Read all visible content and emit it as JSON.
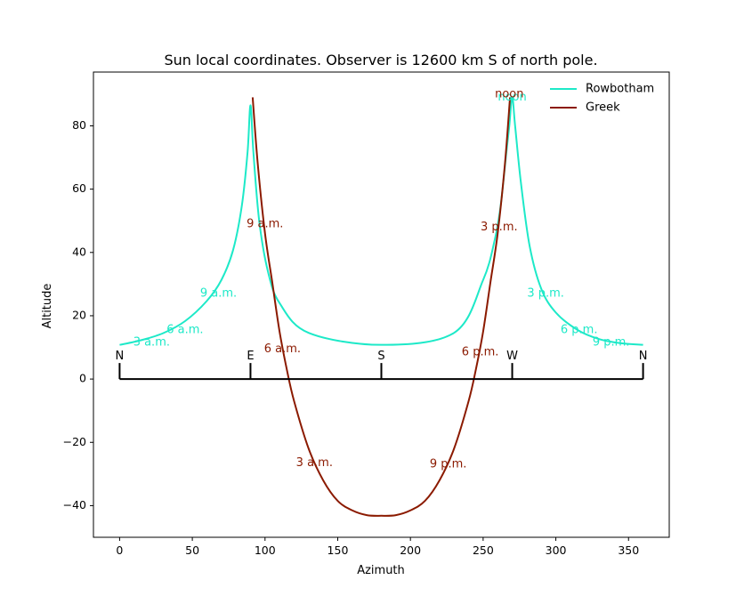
{
  "chart_data": {
    "type": "line",
    "title": "Sun local coordinates. Observer is 12600 km S of north pole.",
    "xlabel": "Azimuth",
    "ylabel": "Altitude",
    "xlim": [
      -18,
      378
    ],
    "ylim": [
      -50,
      97
    ],
    "xticks": [
      0,
      50,
      100,
      150,
      200,
      250,
      300,
      350
    ],
    "yticks": [
      -40,
      -20,
      0,
      20,
      40,
      60,
      80
    ],
    "legend_position": "top-right",
    "series": [
      {
        "name": "Rowbotham",
        "color": "#1de9c8",
        "x": [
          0,
          15,
          30,
          45,
          60,
          70,
          78,
          84,
          88,
          90,
          92,
          96,
          102,
          110,
          130,
          180,
          230,
          250,
          258,
          262,
          266,
          268,
          270,
          272,
          276,
          282,
          290,
          300,
          315,
          330,
          345,
          360
        ],
        "y": [
          10.8,
          12.3,
          14.5,
          18.3,
          24.7,
          31.3,
          40.7,
          54.6,
          71.7,
          86.5,
          71.7,
          50.0,
          34.0,
          24.0,
          14.6,
          10.8,
          14.6,
          31.3,
          44.0,
          54.6,
          71.7,
          80.0,
          89.0,
          80.0,
          62.0,
          42.0,
          28.5,
          21.0,
          15.5,
          12.6,
          11.3,
          10.8
        ],
        "visible_x_range": [
          0,
          360
        ],
        "labels": [
          {
            "text": "3 a.m.",
            "x": 22,
            "y": 11.5
          },
          {
            "text": "6 a.m.",
            "x": 45,
            "y": 15.5
          },
          {
            "text": "9 a.m.",
            "x": 68,
            "y": 27
          },
          {
            "text": "noon",
            "x": 270,
            "y": 89
          },
          {
            "text": "3 p.m.",
            "x": 293,
            "y": 27
          },
          {
            "text": "6 p.m.",
            "x": 316,
            "y": 15.5
          },
          {
            "text": "9 p.m.",
            "x": 338,
            "y": 11.5
          }
        ]
      },
      {
        "name": "Greek",
        "color": "#8b1a00",
        "x": [
          91.5,
          95,
          100,
          105,
          110,
          115,
          120,
          130,
          140,
          150,
          160,
          170,
          180,
          190,
          200,
          210,
          220,
          230,
          240,
          245,
          250,
          255,
          260,
          265,
          268.5
        ],
        "y": [
          89,
          68,
          46,
          30.5,
          15,
          3,
          -7,
          -22,
          -32,
          -38.5,
          -41.5,
          -43,
          -43.2,
          -43,
          -41.5,
          -38.5,
          -32,
          -22,
          -7,
          3,
          15,
          30.5,
          46,
          68,
          89
        ],
        "labels": [
          {
            "text": "9 a.m.",
            "x": 100,
            "y": 49
          },
          {
            "text": "6 a.m.",
            "x": 112,
            "y": 9.5
          },
          {
            "text": "3 a.m.",
            "x": 134,
            "y": -26.5
          },
          {
            "text": "noon",
            "x": 268,
            "y": 90
          },
          {
            "text": "3 p.m.",
            "x": 261,
            "y": 48
          },
          {
            "text": "6 p.m.",
            "x": 248,
            "y": 8.5
          },
          {
            "text": "9 p.m.",
            "x": 226,
            "y": -27
          }
        ]
      }
    ],
    "horizon": {
      "y": 0,
      "marks": [
        {
          "label": "N",
          "x": 0
        },
        {
          "label": "E",
          "x": 90
        },
        {
          "label": "S",
          "x": 180
        },
        {
          "label": "W",
          "x": 270
        },
        {
          "label": "N",
          "x": 360
        }
      ]
    }
  }
}
